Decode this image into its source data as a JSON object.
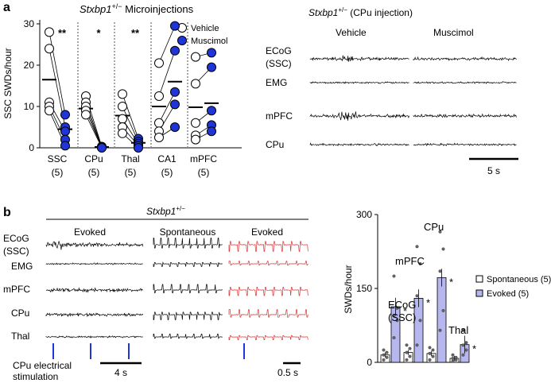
{
  "panel_a": {
    "letter": "a",
    "title_gene": "Stxbp1",
    "title_sup": "+/−",
    "title_rest": " Microinjections",
    "legend": [
      "Vehicle",
      "Muscimol"
    ],
    "ylabel": "SSC SWDs/hour",
    "yticks": [
      "0",
      "10",
      "20",
      "30"
    ],
    "groups": [
      {
        "name": "SSC",
        "n": "(5)",
        "sig": "**"
      },
      {
        "name": "CPu",
        "n": "(5)",
        "sig": "*"
      },
      {
        "name": "Thal",
        "n": "(5)",
        "sig": "**"
      },
      {
        "name": "CA1",
        "n": "(5)",
        "sig": ""
      },
      {
        "name": "mPFC",
        "n": "(5)",
        "sig": ""
      }
    ],
    "traces_title_gene": "Stxbp1",
    "traces_title_sup": "+/−",
    "traces_title_rest": " (CPu injection)",
    "trace_cols": [
      "Vehicle",
      "Muscimol"
    ],
    "trace_rows": [
      "ECoG",
      "(SSC)",
      "EMG",
      "mPFC",
      "CPu"
    ],
    "scale": "5 s"
  },
  "panel_b": {
    "letter": "b",
    "title_gene": "Stxbp1",
    "title_sup": "+/−",
    "headers": [
      "Evoked",
      "Spontaneous",
      "Evoked"
    ],
    "trace_rows": [
      "ECoG",
      "(SSC)",
      "EMG",
      "mPFC",
      "CPu",
      "Thal"
    ],
    "stim_label_1": "CPu electrical",
    "stim_label_2": "stimulation",
    "scale1": "4 s",
    "scale2": "0.5 s",
    "bar_labels": [
      "ECoG",
      "(SSC)",
      "mPFC",
      "CPu",
      "Thal"
    ],
    "ylabel": "SWDs/hour",
    "yticks": [
      "0",
      "150",
      "300"
    ],
    "legend": [
      "Spontaneous (5)",
      "Evoked (5)"
    ],
    "star": "*"
  },
  "chart_data": [
    {
      "type": "scatter",
      "title": "Stxbp1+/− Microinjections",
      "ylabel": "SSC SWDs/hour",
      "ylim": [
        0,
        30
      ],
      "categories": [
        "SSC",
        "CPu",
        "Thal",
        "CA1",
        "mPFC"
      ],
      "series": [
        {
          "name": "Vehicle",
          "values": [
            [
              28,
              24,
              11,
              10,
              9
            ],
            [
              12.5,
              11,
              10,
              9,
              8
            ],
            [
              13,
              10,
              7,
              5,
              3.5
            ],
            [
              20.5,
              12.5,
              6,
              4,
              2.5
            ],
            [
              22,
              15.5,
              6,
              3,
              2
            ]
          ],
          "means": [
            16.5,
            9.5,
            7.8,
            10,
            9.8
          ]
        },
        {
          "name": "Muscimol",
          "values": [
            [
              8,
              5,
              4,
              2,
              0.5
            ],
            [
              0.3,
              0.2,
              0.1,
              0.1,
              0
            ],
            [
              2.2,
              1.5,
              1,
              0.5,
              0
            ],
            [
              29.5,
              23.5,
              13.5,
              10.5,
              5
            ],
            [
              23,
              19.5,
              9,
              5.5,
              4
            ]
          ],
          "means": [
            4.5,
            0.2,
            1.2,
            16,
            10.8
          ]
        }
      ]
    },
    {
      "type": "bar",
      "ylabel": "SWDs/hour",
      "ylim": [
        0,
        300
      ],
      "categories": [
        "SSC",
        "mPFC",
        "CPu",
        "Thal"
      ],
      "series": [
        {
          "name": "Spontaneous (5)",
          "values": [
            15,
            20,
            18,
            8
          ],
          "points": [
            [
              5,
              10,
              15,
              20,
              25
            ],
            [
              5,
              12,
              20,
              28,
              35
            ],
            [
              5,
              12,
              18,
              25,
              30
            ],
            [
              2,
              5,
              8,
              10,
              15
            ]
          ]
        },
        {
          "name": "Evoked (5)",
          "values": [
            113,
            130,
            172,
            36
          ],
          "points": [
            [
              50,
              85,
              95,
              110,
              175
            ],
            [
              35,
              85,
              135,
              200,
              235
            ],
            [
              65,
              105,
              185,
              230,
              265
            ],
            [
              15,
              25,
              35,
              40,
              65
            ]
          ]
        }
      ]
    }
  ]
}
